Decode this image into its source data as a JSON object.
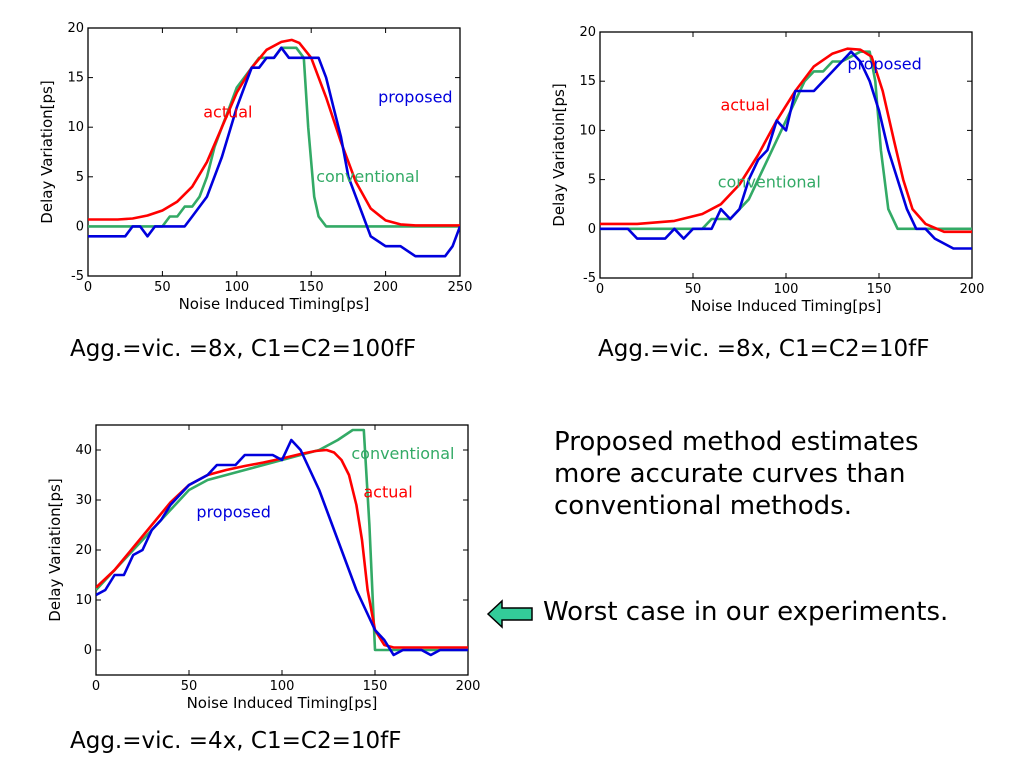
{
  "chart_data": [
    {
      "type": "line",
      "xlabel": "Noise Induced Timing[ps]",
      "ylabel": "Delay Variation[ps]",
      "xlim": [
        0,
        250
      ],
      "ylim": [
        -5,
        20
      ],
      "xticks": [
        0,
        50,
        100,
        150,
        200,
        250
      ],
      "yticks": [
        -5,
        0,
        5,
        10,
        15,
        20
      ],
      "grid": false,
      "caption": "Agg.=vic. =8x, C1=C2=100fF",
      "series": [
        {
          "name": "actual",
          "color": "#ff0000",
          "label_at": [
            94,
            11
          ],
          "points": [
            [
              0,
              0.7
            ],
            [
              20,
              0.7
            ],
            [
              30,
              0.8
            ],
            [
              40,
              1.1
            ],
            [
              50,
              1.6
            ],
            [
              60,
              2.5
            ],
            [
              70,
              4
            ],
            [
              80,
              6.5
            ],
            [
              90,
              10
            ],
            [
              100,
              13.5
            ],
            [
              110,
              16
            ],
            [
              120,
              17.8
            ],
            [
              130,
              18.6
            ],
            [
              137,
              18.8
            ],
            [
              142,
              18.5
            ],
            [
              150,
              17
            ],
            [
              160,
              13
            ],
            [
              170,
              8.5
            ],
            [
              180,
              4.5
            ],
            [
              190,
              1.8
            ],
            [
              200,
              0.6
            ],
            [
              210,
              0.2
            ],
            [
              220,
              0.1
            ],
            [
              250,
              0.1
            ]
          ]
        },
        {
          "name": "proposed",
          "color": "#0000dd",
          "label_at": [
            220,
            12.5
          ],
          "points": [
            [
              0,
              -1
            ],
            [
              25,
              -1
            ],
            [
              30,
              0
            ],
            [
              35,
              0
            ],
            [
              40,
              -1
            ],
            [
              45,
              0
            ],
            [
              60,
              0
            ],
            [
              65,
              0
            ],
            [
              70,
              1
            ],
            [
              80,
              3
            ],
            [
              90,
              7
            ],
            [
              100,
              12
            ],
            [
              105,
              14
            ],
            [
              110,
              16
            ],
            [
              115,
              16
            ],
            [
              120,
              17
            ],
            [
              125,
              17
            ],
            [
              130,
              18
            ],
            [
              135,
              17
            ],
            [
              150,
              17
            ],
            [
              155,
              17
            ],
            [
              160,
              15
            ],
            [
              165,
              12
            ],
            [
              170,
              9
            ],
            [
              175,
              5
            ],
            [
              180,
              3
            ],
            [
              185,
              1
            ],
            [
              190,
              -1
            ],
            [
              200,
              -2
            ],
            [
              210,
              -2
            ],
            [
              220,
              -3
            ],
            [
              240,
              -3
            ],
            [
              245,
              -2
            ],
            [
              250,
              0
            ]
          ]
        },
        {
          "name": "conventional",
          "color": "#33aa66",
          "label_at": [
            188,
            4.5
          ],
          "points": [
            [
              0,
              0
            ],
            [
              45,
              0
            ],
            [
              50,
              0
            ],
            [
              55,
              1
            ],
            [
              60,
              1
            ],
            [
              65,
              2
            ],
            [
              70,
              2
            ],
            [
              75,
              3
            ],
            [
              80,
              5
            ],
            [
              85,
              8
            ],
            [
              90,
              10
            ],
            [
              95,
              12
            ],
            [
              100,
              14
            ],
            [
              105,
              15
            ],
            [
              110,
              16
            ],
            [
              115,
              17
            ],
            [
              120,
              17
            ],
            [
              125,
              17
            ],
            [
              130,
              18
            ],
            [
              140,
              18
            ],
            [
              145,
              17
            ],
            [
              148,
              10
            ],
            [
              152,
              3
            ],
            [
              155,
              1
            ],
            [
              160,
              0
            ],
            [
              250,
              0
            ]
          ]
        }
      ]
    },
    {
      "type": "line",
      "xlabel": "Noise Induced Timing[ps]",
      "ylabel": "Delay Variatoin[ps]",
      "xlim": [
        0,
        200
      ],
      "ylim": [
        -5,
        20
      ],
      "xticks": [
        0,
        50,
        100,
        150,
        200
      ],
      "yticks": [
        -5,
        0,
        5,
        10,
        15,
        20
      ],
      "grid": false,
      "caption": "Agg.=vic. =8x, C1=C2=10fF",
      "series": [
        {
          "name": "actual",
          "color": "#ff0000",
          "label_at": [
            78,
            12
          ],
          "points": [
            [
              0,
              0.5
            ],
            [
              20,
              0.5
            ],
            [
              40,
              0.8
            ],
            [
              55,
              1.5
            ],
            [
              65,
              2.5
            ],
            [
              75,
              4.5
            ],
            [
              85,
              7.5
            ],
            [
              95,
              11
            ],
            [
              105,
              14
            ],
            [
              115,
              16.5
            ],
            [
              125,
              17.8
            ],
            [
              133,
              18.3
            ],
            [
              140,
              18.2
            ],
            [
              146,
              17.5
            ],
            [
              152,
              14
            ],
            [
              158,
              9
            ],
            [
              163,
              5
            ],
            [
              168,
              2
            ],
            [
              175,
              0.5
            ],
            [
              185,
              -0.3
            ],
            [
              200,
              -0.3
            ]
          ]
        },
        {
          "name": "proposed",
          "color": "#0000dd",
          "label_at": [
            153,
            16.2
          ],
          "points": [
            [
              0,
              0
            ],
            [
              15,
              0
            ],
            [
              20,
              -1
            ],
            [
              35,
              -1
            ],
            [
              40,
              0
            ],
            [
              45,
              -1
            ],
            [
              50,
              0
            ],
            [
              60,
              0
            ],
            [
              65,
              2
            ],
            [
              70,
              1
            ],
            [
              75,
              2
            ],
            [
              80,
              5
            ],
            [
              85,
              7
            ],
            [
              90,
              8
            ],
            [
              95,
              11
            ],
            [
              100,
              10
            ],
            [
              105,
              14
            ],
            [
              115,
              14
            ],
            [
              120,
              15
            ],
            [
              125,
              16
            ],
            [
              130,
              17
            ],
            [
              135,
              18
            ],
            [
              140,
              17
            ],
            [
              145,
              15
            ],
            [
              150,
              12
            ],
            [
              155,
              8
            ],
            [
              160,
              5
            ],
            [
              165,
              2
            ],
            [
              170,
              0
            ],
            [
              175,
              0
            ],
            [
              180,
              -1
            ],
            [
              190,
              -2
            ],
            [
              200,
              -2
            ]
          ]
        },
        {
          "name": "conventional",
          "color": "#33aa66",
          "label_at": [
            91,
            4.2
          ],
          "points": [
            [
              0,
              0
            ],
            [
              50,
              0
            ],
            [
              55,
              0
            ],
            [
              60,
              1
            ],
            [
              70,
              1
            ],
            [
              75,
              2
            ],
            [
              80,
              3
            ],
            [
              85,
              5
            ],
            [
              90,
              7
            ],
            [
              95,
              9
            ],
            [
              100,
              11
            ],
            [
              105,
              13
            ],
            [
              110,
              15
            ],
            [
              115,
              16
            ],
            [
              120,
              16
            ],
            [
              125,
              17
            ],
            [
              130,
              17
            ],
            [
              140,
              18
            ],
            [
              145,
              18
            ],
            [
              148,
              15
            ],
            [
              151,
              8
            ],
            [
              155,
              2
            ],
            [
              160,
              0
            ],
            [
              200,
              0
            ]
          ]
        }
      ]
    },
    {
      "type": "line",
      "xlabel": "Noise Induced Timing[ps]",
      "ylabel": "Delay Variation[ps]",
      "xlim": [
        0,
        200
      ],
      "ylim": [
        -5,
        45
      ],
      "xticks": [
        0,
        50,
        100,
        150,
        200
      ],
      "yticks": [
        0,
        10,
        20,
        30,
        40
      ],
      "grid": false,
      "caption": "Agg.=vic. =4x, C1=C2=10fF",
      "series": [
        {
          "name": "actual",
          "color": "#ff0000",
          "label_at": [
            157,
            30.5
          ],
          "points": [
            [
              0,
              12.5
            ],
            [
              10,
              16
            ],
            [
              20,
              20.5
            ],
            [
              30,
              25
            ],
            [
              40,
              29.5
            ],
            [
              50,
              33
            ],
            [
              60,
              35
            ],
            [
              70,
              36
            ],
            [
              80,
              36.8
            ],
            [
              90,
              37.5
            ],
            [
              100,
              38.3
            ],
            [
              110,
              39.2
            ],
            [
              118,
              39.8
            ],
            [
              124,
              40
            ],
            [
              128,
              39.5
            ],
            [
              132,
              38
            ],
            [
              136,
              35
            ],
            [
              140,
              29
            ],
            [
              143,
              22
            ],
            [
              146,
              12
            ],
            [
              150,
              4
            ],
            [
              155,
              1
            ],
            [
              160,
              0.5
            ],
            [
              200,
              0.5
            ]
          ]
        },
        {
          "name": "proposed",
          "color": "#0000dd",
          "label_at": [
            74,
            26.5
          ],
          "points": [
            [
              0,
              11
            ],
            [
              5,
              12
            ],
            [
              10,
              15
            ],
            [
              15,
              15
            ],
            [
              20,
              19
            ],
            [
              25,
              20
            ],
            [
              30,
              24
            ],
            [
              35,
              26
            ],
            [
              40,
              29
            ],
            [
              45,
              31
            ],
            [
              50,
              33
            ],
            [
              55,
              34
            ],
            [
              60,
              35
            ],
            [
              65,
              37
            ],
            [
              75,
              37
            ],
            [
              80,
              39
            ],
            [
              95,
              39
            ],
            [
              100,
              38
            ],
            [
              105,
              42
            ],
            [
              110,
              40
            ],
            [
              115,
              36
            ],
            [
              120,
              32
            ],
            [
              125,
              27
            ],
            [
              130,
              22
            ],
            [
              135,
              17
            ],
            [
              140,
              12
            ],
            [
              145,
              8
            ],
            [
              150,
              4
            ],
            [
              155,
              2
            ],
            [
              160,
              -1
            ],
            [
              165,
              0
            ],
            [
              175,
              0
            ],
            [
              180,
              -1
            ],
            [
              185,
              0
            ],
            [
              200,
              0
            ]
          ]
        },
        {
          "name": "conventional",
          "color": "#33aa66",
          "label_at": [
            165,
            38.2
          ],
          "points": [
            [
              0,
              12
            ],
            [
              10,
              16
            ],
            [
              20,
              20
            ],
            [
              30,
              24
            ],
            [
              40,
              28
            ],
            [
              50,
              32
            ],
            [
              60,
              34
            ],
            [
              70,
              35
            ],
            [
              80,
              36
            ],
            [
              90,
              37
            ],
            [
              100,
              38
            ],
            [
              110,
              39
            ],
            [
              120,
              40
            ],
            [
              130,
              42
            ],
            [
              138,
              44
            ],
            [
              144,
              44
            ],
            [
              147,
              25
            ],
            [
              150,
              0
            ],
            [
              200,
              0
            ]
          ]
        }
      ]
    }
  ],
  "note": {
    "lines": [
      "Proposed method estimates",
      "more accurate curves than",
      "conventional methods."
    ]
  },
  "worst_case": {
    "text": "Worst case in our experiments.",
    "arrow_icon": "left-arrow-icon",
    "arrow_color": "#33cc99"
  }
}
